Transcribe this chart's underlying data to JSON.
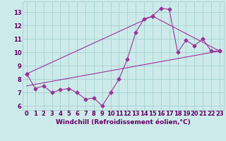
{
  "xlabel": "Windchill (Refroidissement éolien,°C)",
  "bg_color": "#cdeaea",
  "line_color": "#993399",
  "grid_color": "#aad4d4",
  "xlim": [
    -0.5,
    23.5
  ],
  "ylim": [
    5.7,
    13.8
  ],
  "yticks": [
    6,
    7,
    8,
    9,
    10,
    11,
    12,
    13
  ],
  "xticks": [
    0,
    1,
    2,
    3,
    4,
    5,
    6,
    7,
    8,
    9,
    10,
    11,
    12,
    13,
    14,
    15,
    16,
    17,
    18,
    19,
    20,
    21,
    22,
    23
  ],
  "series1_x": [
    0,
    1,
    2,
    3,
    4,
    5,
    6,
    7,
    8,
    9,
    10,
    11,
    12,
    13,
    14,
    15,
    16,
    17,
    18,
    19,
    20,
    21,
    22,
    23
  ],
  "series1_y": [
    8.4,
    7.3,
    7.5,
    7.0,
    7.2,
    7.3,
    7.0,
    6.5,
    6.6,
    6.0,
    7.0,
    8.0,
    9.5,
    11.5,
    12.5,
    12.7,
    13.3,
    13.2,
    10.0,
    10.9,
    10.5,
    11.0,
    10.1,
    10.1
  ],
  "series2_x": [
    0,
    15,
    23
  ],
  "series2_y": [
    8.4,
    12.7,
    10.1
  ],
  "series3_x": [
    0,
    23
  ],
  "series3_y": [
    7.5,
    10.1
  ],
  "text_color": "#660066",
  "xlabel_color": "#660066",
  "xlabel_fontsize": 6.5,
  "tick_fontsize": 6.0
}
